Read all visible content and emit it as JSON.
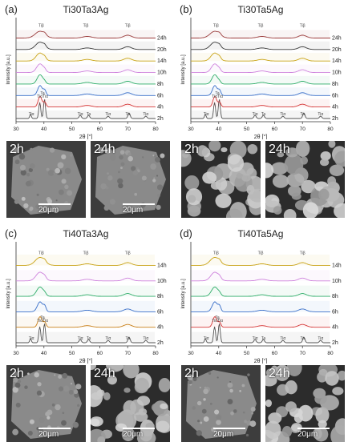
{
  "chart_data": [
    {
      "type": "line",
      "panel_label": "(a)",
      "title": "Ti30Ta3Ag",
      "xlabel": "2θ [°]",
      "ylabel": "Intensity [a.u.]",
      "xlim": [
        30,
        80
      ],
      "xticks": [
        "30",
        "40",
        "50",
        "60",
        "70",
        "80"
      ],
      "series": [
        {
          "name": "2h",
          "color": "#555555"
        },
        {
          "name": "4h",
          "color": "#d63a3a"
        },
        {
          "name": "6h",
          "color": "#3a6fc9"
        },
        {
          "name": "8h",
          "color": "#2fae6a"
        },
        {
          "name": "10h",
          "color": "#cf83dd"
        },
        {
          "name": "14h",
          "color": "#c9a316"
        },
        {
          "name": "20h",
          "color": "#3a3a3a"
        },
        {
          "name": "24h",
          "color": "#9c3d3d"
        }
      ],
      "peak_labels": [
        "Tiβ",
        "Tiβ",
        "Tiβ",
        "Tiα",
        "Tiα",
        "Tiα",
        "Ta",
        "Tiα",
        "Ta",
        "Tiα",
        "Ta",
        "Tiα"
      ],
      "images": [
        {
          "label": "2h",
          "scale": "20μm"
        },
        {
          "label": "24h",
          "scale": "20μm"
        }
      ]
    },
    {
      "type": "line",
      "panel_label": "(b)",
      "title": "Ti30Ta5Ag",
      "xlabel": "2θ [°]",
      "ylabel": "Intensity [a.u.]",
      "xlim": [
        30,
        80
      ],
      "xticks": [
        "30",
        "40",
        "50",
        "60",
        "70",
        "80"
      ],
      "series": [
        {
          "name": "2h",
          "color": "#555555"
        },
        {
          "name": "4h",
          "color": "#d63a3a"
        },
        {
          "name": "6h",
          "color": "#3a6fc9"
        },
        {
          "name": "8h",
          "color": "#2fae6a"
        },
        {
          "name": "10h",
          "color": "#cf83dd"
        },
        {
          "name": "14h",
          "color": "#c9a316"
        },
        {
          "name": "20h",
          "color": "#3a3a3a"
        },
        {
          "name": "24h",
          "color": "#9c3d3d"
        }
      ],
      "peak_labels": [
        "Tiβ",
        "Tiβ",
        "Tiβ",
        "Tiα",
        "Tiα",
        "Tiα",
        "Ta",
        "Tiα",
        "Ta",
        "Tiα",
        "Ta",
        "Tiα"
      ],
      "images": [
        {
          "label": "2h",
          "scale": ""
        },
        {
          "label": "24h",
          "scale": ""
        }
      ]
    },
    {
      "type": "line",
      "panel_label": "(c)",
      "title": "Ti40Ta3Ag",
      "xlabel": "2θ [°]",
      "ylabel": "Intensity [a.u.]",
      "xlim": [
        30,
        80
      ],
      "xticks": [
        "30",
        "40",
        "50",
        "60",
        "70",
        "80"
      ],
      "series": [
        {
          "name": "2h",
          "color": "#555555"
        },
        {
          "name": "4h",
          "color": "#c9801a"
        },
        {
          "name": "6h",
          "color": "#3a6fc9"
        },
        {
          "name": "8h",
          "color": "#2fae6a"
        },
        {
          "name": "10h",
          "color": "#cf83dd"
        },
        {
          "name": "14h",
          "color": "#c9a316"
        }
      ],
      "peak_labels": [
        "Tiβ",
        "Tiβ",
        "Tiβ",
        "Tiα",
        "Tiα",
        "Tiα",
        "Ta",
        "Tiα",
        "Ta",
        "Tiα",
        "Ta",
        "Tiα"
      ],
      "images": [
        {
          "label": "2h",
          "scale": "20μm"
        },
        {
          "label": "24h",
          "scale": "20μm"
        }
      ]
    },
    {
      "type": "line",
      "panel_label": "(d)",
      "title": "Ti40Ta5Ag",
      "xlabel": "2θ [°]",
      "ylabel": "Intensity [a.u.]",
      "xlim": [
        30,
        80
      ],
      "xticks": [
        "30",
        "40",
        "50",
        "60",
        "70",
        "80"
      ],
      "series": [
        {
          "name": "2h",
          "color": "#555555"
        },
        {
          "name": "4h",
          "color": "#d63a3a"
        },
        {
          "name": "6h",
          "color": "#3a6fc9"
        },
        {
          "name": "8h",
          "color": "#2fae6a"
        },
        {
          "name": "10h",
          "color": "#cf83dd"
        },
        {
          "name": "14h",
          "color": "#c9a316"
        }
      ],
      "peak_labels": [
        "Tiβ",
        "Tiβ",
        "Tiβ",
        "Tiα",
        "Tiα",
        "Tiα",
        "Ta",
        "Tiα",
        "Ta",
        "Tiα",
        "Ta",
        "Tiα"
      ],
      "images": [
        {
          "label": "2h",
          "scale": "20μm"
        },
        {
          "label": "24h",
          "scale": "20μm"
        }
      ]
    }
  ]
}
